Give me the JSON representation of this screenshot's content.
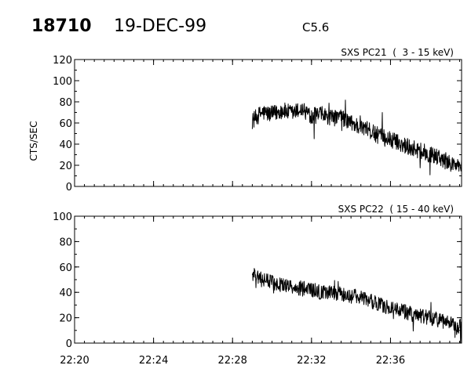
{
  "header": {
    "event_id": "18710",
    "date": "19-DEC-99",
    "flare_class": "C5.6"
  },
  "chart_data": [
    {
      "type": "line",
      "title": "SXS PC21  (  3 - 15 keV)",
      "ylabel": "CTS/SEC",
      "xlabel": "",
      "xlim": [
        "22:20",
        "22:39:36"
      ],
      "ylim": [
        0,
        120
      ],
      "yticks": [
        0,
        20,
        40,
        60,
        80,
        100,
        120
      ],
      "yticklabels": [
        "0",
        "20",
        "40",
        "60",
        "80",
        "100",
        "120"
      ],
      "xticks": [
        "22:20",
        "22:24",
        "22:28",
        "22:32",
        "22:36"
      ],
      "xticklabels": [],
      "grid": false,
      "series": [
        {
          "x": [
            "22:29:00",
            "22:29:30",
            "22:30:00",
            "22:30:30",
            "22:31:00",
            "22:31:30",
            "22:32:00",
            "22:32:30",
            "22:33:00",
            "22:33:30",
            "22:34:00",
            "22:34:30",
            "22:35:00",
            "22:35:30",
            "22:36:00",
            "22:36:30",
            "22:37:00",
            "22:37:30",
            "22:38:00",
            "22:38:30",
            "22:39:00",
            "22:39:36"
          ],
          "values": [
            62,
            70,
            68,
            72,
            69,
            73,
            67,
            68,
            64,
            66,
            60,
            56,
            52,
            47,
            44,
            41,
            37,
            34,
            30,
            27,
            22,
            18
          ]
        }
      ]
    },
    {
      "type": "line",
      "title": "SXS PC22  ( 15 - 40 keV)",
      "ylabel": "",
      "xlabel": "",
      "xlim": [
        "22:20",
        "22:39:36"
      ],
      "ylim": [
        0,
        100
      ],
      "yticks": [
        0,
        20,
        40,
        60,
        80,
        100
      ],
      "yticklabels": [
        "0",
        "20",
        "40",
        "60",
        "80",
        "100"
      ],
      "xticks": [
        "22:20",
        "22:24",
        "22:28",
        "22:32",
        "22:36"
      ],
      "xticklabels": [
        "22:20",
        "22:24",
        "22:28",
        "22:32",
        "22:36"
      ],
      "grid": false,
      "series": [
        {
          "x": [
            "22:29:00",
            "22:29:30",
            "22:30:00",
            "22:30:30",
            "22:31:00",
            "22:31:30",
            "22:32:00",
            "22:32:30",
            "22:33:00",
            "22:33:30",
            "22:34:00",
            "22:34:30",
            "22:35:00",
            "22:35:30",
            "22:36:00",
            "22:36:30",
            "22:37:00",
            "22:37:30",
            "22:38:00",
            "22:38:30",
            "22:39:00",
            "22:39:36"
          ],
          "values": [
            55,
            50,
            48,
            46,
            45,
            43,
            42,
            40,
            40,
            39,
            37,
            36,
            33,
            30,
            28,
            26,
            23,
            21,
            20,
            18,
            15,
            13
          ]
        }
      ]
    }
  ]
}
